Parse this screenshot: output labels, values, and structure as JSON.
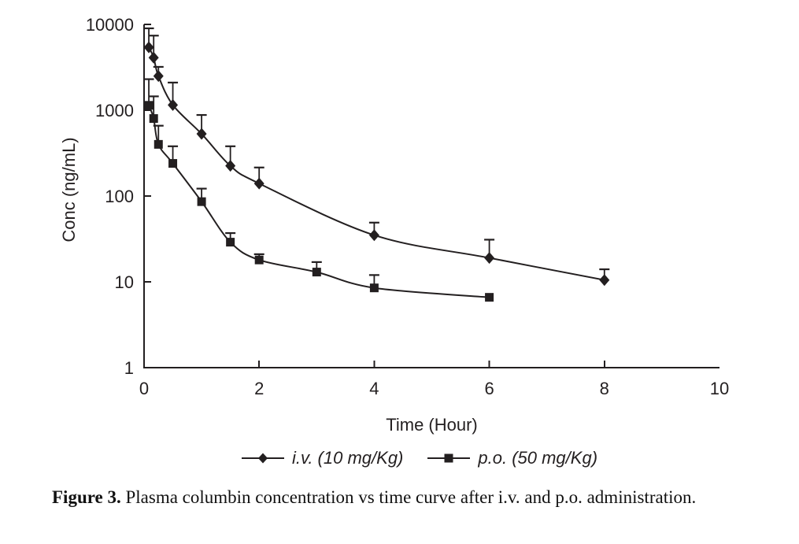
{
  "chart_data": {
    "type": "line",
    "title": "",
    "xlabel": "Time (Hour)",
    "ylabel": "Conc (ng/mL)",
    "y_scale": "log10",
    "xlim": [
      0,
      10
    ],
    "ylim": [
      1,
      10000
    ],
    "x_ticks": [
      0,
      2,
      4,
      6,
      8,
      10
    ],
    "y_ticks": [
      1,
      10,
      100,
      1000,
      10000
    ],
    "grid": false,
    "error_bars": "upper-only",
    "legend_position": "bottom-center",
    "series": [
      {
        "name": "i.v. (10 mg/Kg)",
        "marker": "diamond",
        "points": [
          {
            "t": 0.083,
            "conc": 5400,
            "err_top": 9000
          },
          {
            "t": 0.167,
            "conc": 4100,
            "err_top": 7400
          },
          {
            "t": 0.25,
            "conc": 2500,
            "err_top": 3200
          },
          {
            "t": 0.5,
            "conc": 1150,
            "err_top": 2100
          },
          {
            "t": 1,
            "conc": 530,
            "err_top": 880
          },
          {
            "t": 1.5,
            "conc": 225,
            "err_top": 380
          },
          {
            "t": 2,
            "conc": 140,
            "err_top": 215
          },
          {
            "t": 4,
            "conc": 35,
            "err_top": 49
          },
          {
            "t": 6,
            "conc": 19,
            "err_top": 31
          },
          {
            "t": 8,
            "conc": 10.5,
            "err_top": 14
          }
        ]
      },
      {
        "name": "p.o. (50 mg/Kg)",
        "marker": "square",
        "points": [
          {
            "t": 0.083,
            "conc": 1140,
            "err_top": 2300
          },
          {
            "t": 0.167,
            "conc": 800,
            "err_top": 1450
          },
          {
            "t": 0.25,
            "conc": 400,
            "err_top": 660
          },
          {
            "t": 0.5,
            "conc": 240,
            "err_top": 380
          },
          {
            "t": 1,
            "conc": 86,
            "err_top": 122
          },
          {
            "t": 1.5,
            "conc": 29,
            "err_top": 37
          },
          {
            "t": 2,
            "conc": 18,
            "err_top": 21
          },
          {
            "t": 3,
            "conc": 13,
            "err_top": 17
          },
          {
            "t": 4,
            "conc": 8.5,
            "err_top": 12
          },
          {
            "t": 6,
            "conc": 6.6,
            "err_top": null
          }
        ]
      }
    ]
  },
  "caption": {
    "label": "Figure 3.",
    "text": "Plasma columbin concentration vs time curve after i.v. and p.o. administration."
  },
  "colors": {
    "ink": "#231f20",
    "background": "#ffffff"
  }
}
